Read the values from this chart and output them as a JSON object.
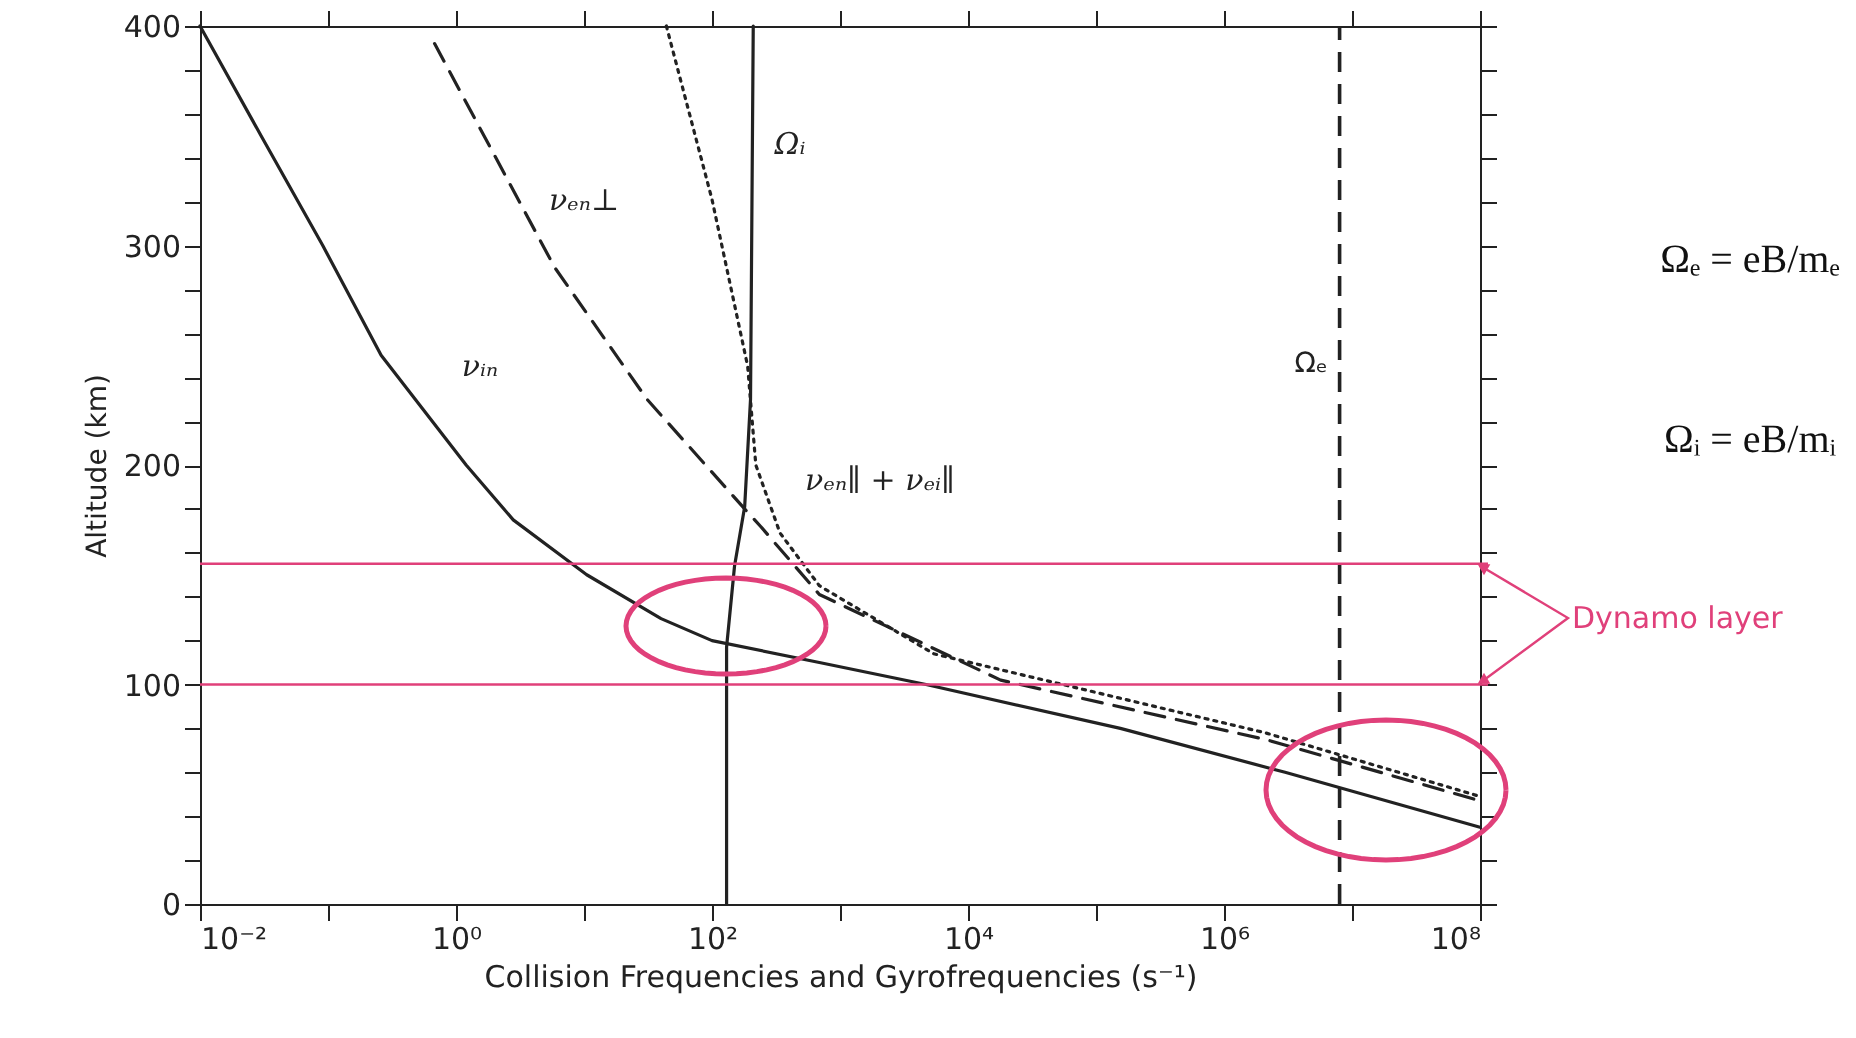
{
  "chart_data": {
    "type": "line",
    "xlabel": "Collision Frequencies and Gyrofrequencies (s⁻¹)",
    "ylabel": "Altitude (km)",
    "log": "x",
    "xlim": [
      0.01,
      100000000
    ],
    "ylim": [
      0,
      400
    ],
    "xticks": [
      {
        "value": 0.01,
        "label": "10⁻²"
      },
      {
        "value": 0.1,
        "label": null
      },
      {
        "value": 1,
        "label": "10⁰"
      },
      {
        "value": 10,
        "label": null
      },
      {
        "value": 100,
        "label": "10²"
      },
      {
        "value": 1000,
        "label": null
      },
      {
        "value": 10000,
        "label": "10⁴"
      },
      {
        "value": 100000,
        "label": null
      },
      {
        "value": 1000000,
        "label": "10⁶"
      },
      {
        "value": 10000000,
        "label": null
      },
      {
        "value": 100000000,
        "label": "10⁸"
      }
    ],
    "yticks": [
      0,
      {
        "value": 20,
        "label": null
      },
      {
        "value": 40,
        "label": null
      },
      {
        "value": 60,
        "label": null
      },
      {
        "value": 80,
        "label": null
      },
      100,
      {
        "value": 120,
        "label": null
      },
      {
        "value": 140,
        "label": null
      },
      {
        "value": 160,
        "label": null
      },
      {
        "value": 180,
        "label": null
      },
      200,
      {
        "value": 220,
        "label": null
      },
      {
        "value": 240,
        "label": null
      },
      {
        "value": 260,
        "label": null
      },
      {
        "value": 280,
        "label": null
      },
      300,
      {
        "value": 320,
        "label": null
      },
      {
        "value": 340,
        "label": null
      },
      {
        "value": 360,
        "label": null
      },
      {
        "value": 380,
        "label": null
      },
      400
    ],
    "grid": false,
    "marker": "none",
    "series": [
      {
        "color": "#222222",
        "line_style": "solid",
        "x": [
          0.01,
          0.03,
          0.091,
          0.26,
          1.2,
          2.8,
          10.5,
          40,
          100,
          690,
          4700,
          155000,
          3000000,
          100000000
        ],
        "values": [
          400,
          350,
          300,
          250,
          200,
          175,
          150,
          130,
          120,
          110,
          100,
          80,
          60,
          35
        ]
      },
      {
        "color": "#222222",
        "line_style": "dashed",
        "x": [
          0.68,
          5.9,
          31,
          180,
          240,
          690,
          18000,
          2100000,
          100000000
        ],
        "values": [
          392,
          290,
          230,
          180,
          172,
          141,
          102,
          75,
          47
        ]
      },
      {
        "color": "#222222",
        "line_style": "dotted",
        "x": [
          44,
          100,
          190,
          220,
          340,
          690,
          5400,
          2100000,
          100000000
        ],
        "values": [
          400,
          321,
          245,
          200,
          169,
          145,
          114,
          78,
          49
        ]
      },
      {
        "color": "#222222",
        "line_style": "solid",
        "x": [
          210,
          200,
          180,
          150,
          130,
          130
        ],
        "values": [
          400,
          230,
          181,
          154,
          117,
          0
        ]
      }
    ],
    "ref_lines": [
      {
        "axis": "x",
        "value": 8000000,
        "label": "Ωₑ",
        "color": "#222222",
        "line_style": "dashed"
      },
      {
        "axis": "y",
        "value": 155,
        "color": "#e0407a",
        "line_style": "solid"
      },
      {
        "axis": "y",
        "value": 100,
        "color": "#e0407a",
        "line_style": "solid"
      }
    ],
    "annotations": [
      "Ωᵢ",
      "νₑₙ⊥",
      "νᵢₙ",
      "νₑₙ∥ + νₑᵢ∥",
      "Ωₑ = eB/mₑ",
      "Ωᵢ = eB/mᵢ",
      "Dynamo layer"
    ]
  }
}
